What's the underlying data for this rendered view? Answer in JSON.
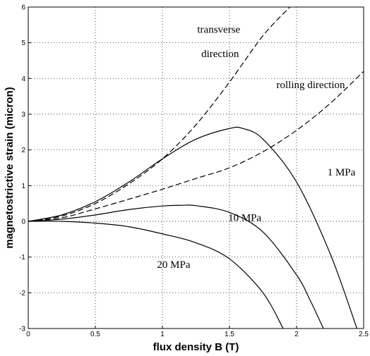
{
  "chart_data": {
    "type": "line",
    "title": "",
    "xlabel": "flux density B (T)",
    "ylabel": "magnetostrictive strain (micron)",
    "xlim": [
      0,
      2.5
    ],
    "ylim": [
      -3,
      6
    ],
    "grid": true,
    "x_ticks": [
      "0",
      "0.5",
      "1",
      "1.5",
      "2",
      "2.5"
    ],
    "y_ticks": [
      "-3",
      "-2",
      "-1",
      "0",
      "1",
      "2",
      "3",
      "4",
      "5",
      "6"
    ],
    "series": [
      {
        "name": "transverse direction",
        "style": "dashed",
        "x": [
          0,
          0.25,
          0.5,
          0.75,
          1.0,
          1.25,
          1.5,
          1.75,
          1.95
        ],
        "y": [
          0,
          0.15,
          0.5,
          1.05,
          1.75,
          2.7,
          3.9,
          5.2,
          6.0
        ]
      },
      {
        "name": "rolling direction",
        "style": "dashed",
        "x": [
          0,
          0.25,
          0.5,
          0.75,
          1.0,
          1.25,
          1.5,
          1.75,
          2.0,
          2.25,
          2.5
        ],
        "y": [
          0,
          0.1,
          0.35,
          0.62,
          0.9,
          1.2,
          1.5,
          1.95,
          2.55,
          3.3,
          4.2
        ]
      },
      {
        "name": "1 MPa",
        "style": "solid",
        "x": [
          0,
          0.25,
          0.5,
          0.75,
          1.0,
          1.25,
          1.5,
          1.6,
          1.75,
          2.0,
          2.25,
          2.45
        ],
        "y": [
          0,
          0.18,
          0.55,
          1.1,
          1.75,
          2.3,
          2.6,
          2.6,
          2.3,
          1.1,
          -0.9,
          -3.0
        ]
      },
      {
        "name": "10 MPa",
        "style": "solid",
        "x": [
          0,
          0.25,
          0.5,
          0.75,
          1.0,
          1.15,
          1.25,
          1.5,
          1.75,
          2.0,
          2.1,
          2.2
        ],
        "y": [
          0,
          0.06,
          0.18,
          0.33,
          0.43,
          0.45,
          0.44,
          0.25,
          -0.3,
          -1.5,
          -2.2,
          -3.0
        ]
      },
      {
        "name": "20 MPa",
        "style": "solid",
        "x": [
          0,
          0.25,
          0.5,
          0.75,
          1.0,
          1.25,
          1.5,
          1.75,
          1.9
        ],
        "y": [
          0,
          0.0,
          -0.05,
          -0.15,
          -0.35,
          -0.6,
          -1.05,
          -2.0,
          -3.0
        ]
      }
    ],
    "annotations": [
      {
        "text": "transverse",
        "x": 1.26,
        "y": 5.28
      },
      {
        "text": "direction",
        "x": 1.29,
        "y": 4.6
      },
      {
        "text": "rolling direction",
        "x": 1.85,
        "y": 3.73
      },
      {
        "text": "1 MPa",
        "x": 2.23,
        "y": 1.28
      },
      {
        "text": "10 MPa",
        "x": 1.49,
        "y": 0.01
      },
      {
        "text": "20 MPa",
        "x": 0.96,
        "y": -1.3
      }
    ]
  }
}
